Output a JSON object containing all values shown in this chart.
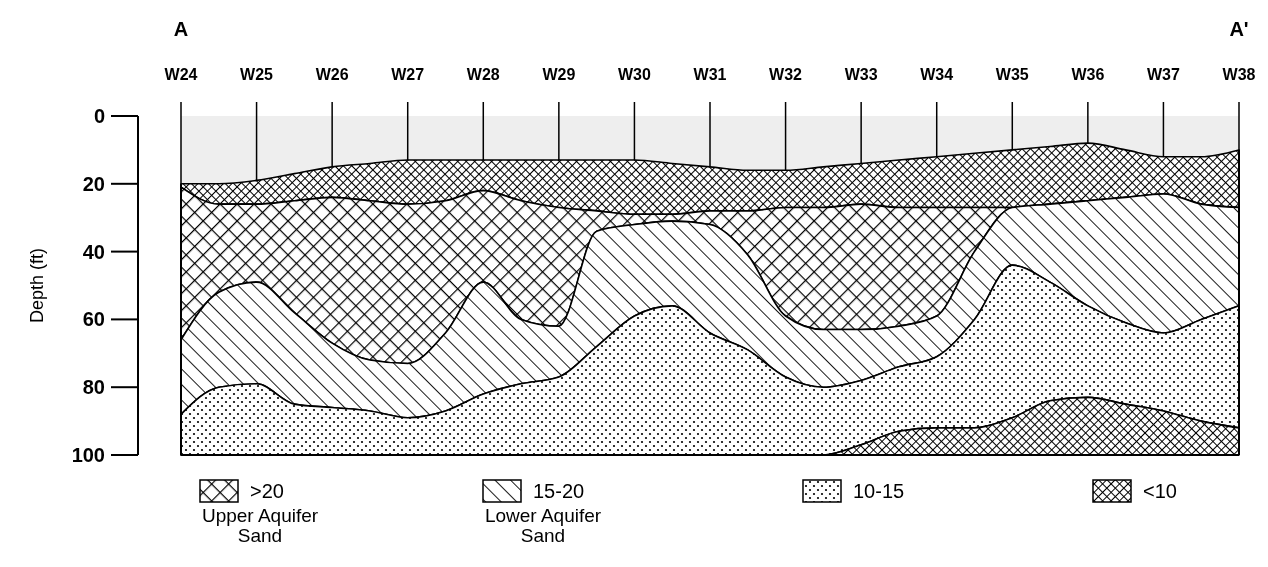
{
  "chart_data": {
    "type": "area",
    "stacked": true,
    "ylabel": "Depth (ft)",
    "annotations": [
      "A",
      "A'",
      "Upper Aquifer Sand",
      "Lower Aquifer Sand"
    ],
    "categories": [
      "W24",
      null,
      "W25",
      null,
      "W26",
      null,
      "W27",
      null,
      "W28",
      null,
      "W29",
      null,
      "W30",
      null,
      "W31",
      null,
      "W32",
      null,
      "W33",
      null,
      "W34",
      null,
      "W35",
      null,
      "W36",
      null,
      "W37",
      null,
      "W38"
    ],
    "ylim": [
      100,
      0
    ],
    "yticks": [
      0,
      20,
      40,
      60,
      80,
      100
    ],
    "legend": "bottom",
    "series": [
      {
        "color": "#eeeeee",
        "values": [
          20,
          20,
          19,
          17,
          15,
          14,
          13,
          13,
          13,
          13,
          13,
          13,
          13,
          14,
          15,
          16,
          16,
          15,
          14,
          13,
          12,
          11,
          10,
          9,
          8,
          10,
          12,
          12,
          10
        ]
      },
      {
        "name": "<10",
        "color": "#000000",
        "values": [
          1,
          6,
          7,
          8,
          9,
          11,
          13,
          12,
          9,
          12,
          14,
          15,
          16,
          15,
          13,
          12,
          11,
          12,
          12,
          14,
          15,
          16,
          17,
          17,
          17,
          14,
          11,
          14,
          17
        ]
      },
      {
        "name": ">20",
        "color": "#000000",
        "values": [
          45,
          26,
          23,
          33,
          43,
          47,
          47,
          39,
          27,
          35,
          35,
          6,
          3,
          2,
          4,
          13,
          32,
          36,
          37,
          35,
          32,
          13,
          0,
          0,
          0,
          0,
          0,
          0,
          0
        ]
      },
      {
        "name": "15-20",
        "color": "#000000",
        "values": [
          22,
          28,
          30,
          27,
          19,
          15,
          16,
          23,
          33,
          19,
          15,
          34,
          27,
          25,
          32,
          28,
          18,
          17,
          15,
          12,
          12,
          20,
          17,
          23,
          31,
          37,
          41,
          34,
          29
        ]
      },
      {
        "name": "10-15",
        "color": "#000000",
        "values": [
          12,
          20,
          21,
          15,
          14,
          13,
          11,
          13,
          18,
          21,
          23,
          32,
          41,
          44,
          36,
          31,
          23,
          20,
          19,
          19,
          21,
          32,
          45,
          35,
          27,
          24,
          23,
          30,
          36
        ]
      },
      {
        "color": "#000000",
        "values": [
          0,
          0,
          0,
          0,
          0,
          0,
          0,
          0,
          0,
          0,
          0,
          0,
          0,
          0,
          0,
          0,
          0,
          0,
          3,
          7,
          8,
          8,
          11,
          16,
          17,
          15,
          13,
          10,
          8
        ]
      }
    ]
  }
}
